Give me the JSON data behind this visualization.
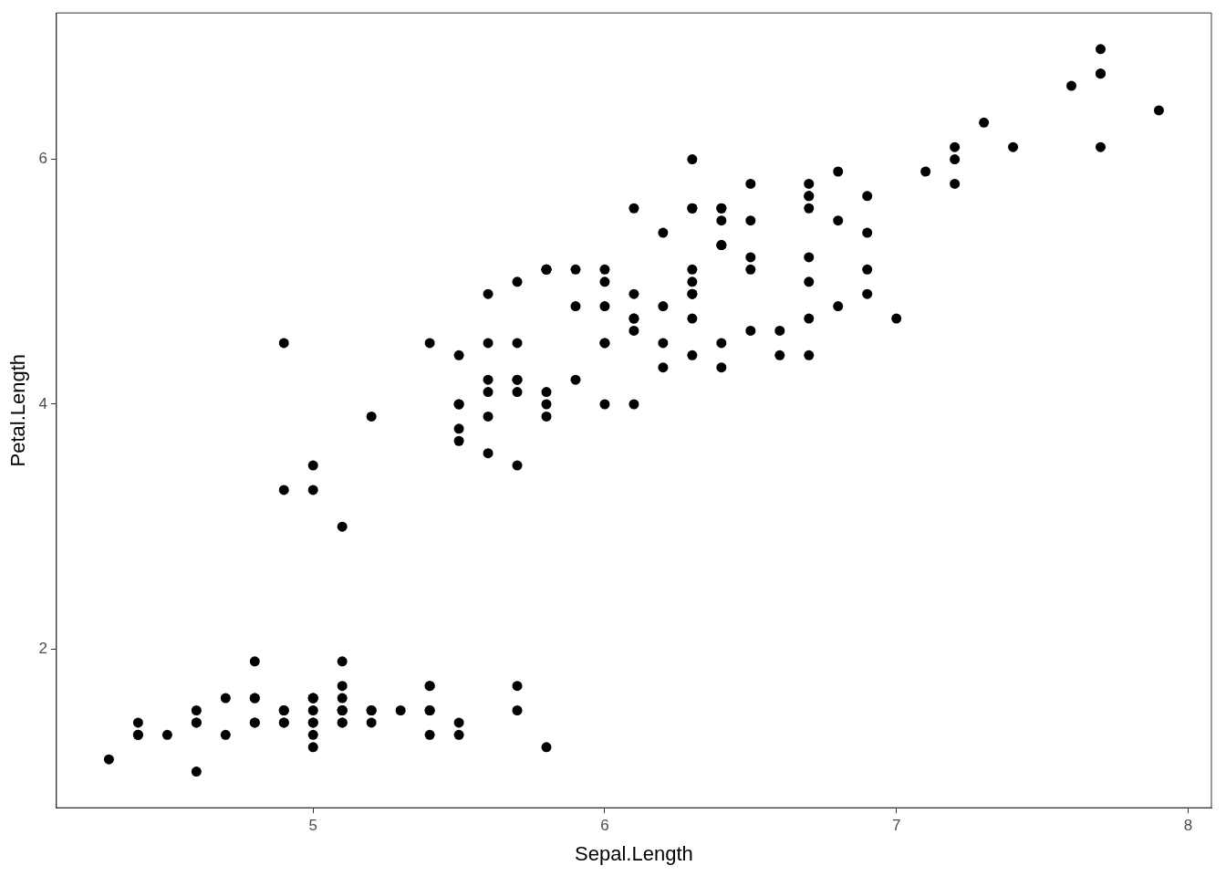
{
  "chart_data": {
    "type": "scatter",
    "xlabel": "Sepal.Length",
    "ylabel": "Petal.Length",
    "x": [
      5.1,
      4.9,
      4.7,
      4.6,
      5.0,
      5.4,
      4.6,
      5.0,
      4.4,
      4.9,
      5.4,
      4.8,
      4.8,
      4.3,
      5.8,
      5.7,
      5.4,
      5.1,
      5.7,
      5.1,
      5.4,
      5.1,
      4.6,
      5.1,
      4.8,
      5.0,
      5.0,
      5.2,
      5.2,
      4.7,
      4.8,
      5.4,
      5.2,
      5.5,
      4.9,
      5.0,
      5.5,
      4.9,
      4.4,
      5.1,
      5.0,
      4.5,
      4.4,
      5.0,
      5.1,
      4.8,
      5.1,
      4.6,
      5.3,
      5.0,
      7.0,
      6.4,
      6.9,
      5.5,
      6.5,
      5.7,
      6.3,
      4.9,
      6.6,
      5.2,
      5.0,
      5.9,
      6.0,
      6.1,
      5.6,
      6.7,
      5.6,
      5.8,
      6.2,
      5.6,
      5.9,
      6.1,
      6.3,
      6.1,
      6.4,
      6.6,
      6.8,
      6.7,
      6.0,
      5.7,
      5.5,
      5.5,
      5.8,
      6.0,
      5.4,
      6.0,
      6.7,
      6.3,
      5.6,
      5.5,
      5.5,
      6.1,
      5.8,
      5.0,
      5.6,
      5.7,
      5.7,
      6.2,
      5.1,
      5.7,
      6.3,
      5.8,
      7.1,
      6.3,
      6.5,
      7.6,
      4.9,
      7.3,
      6.7,
      7.2,
      6.5,
      6.4,
      6.8,
      5.7,
      5.8,
      6.4,
      6.5,
      7.7,
      7.7,
      6.0,
      6.9,
      5.6,
      7.7,
      6.3,
      6.7,
      7.2,
      6.2,
      6.1,
      6.4,
      7.2,
      7.4,
      7.9,
      6.4,
      6.3,
      6.1,
      7.7,
      6.3,
      6.4,
      6.0,
      6.9,
      6.7,
      6.9,
      5.8,
      6.8,
      6.7,
      6.7,
      6.3,
      6.5,
      6.2,
      5.9
    ],
    "values": [
      1.4,
      1.4,
      1.3,
      1.5,
      1.4,
      1.7,
      1.4,
      1.5,
      1.4,
      1.5,
      1.5,
      1.6,
      1.4,
      1.1,
      1.2,
      1.5,
      1.3,
      1.4,
      1.7,
      1.5,
      1.7,
      1.5,
      1.0,
      1.7,
      1.9,
      1.6,
      1.6,
      1.5,
      1.4,
      1.6,
      1.6,
      1.5,
      1.5,
      1.4,
      1.5,
      1.2,
      1.3,
      1.4,
      1.3,
      1.5,
      1.3,
      1.3,
      1.3,
      1.6,
      1.9,
      1.4,
      1.6,
      1.4,
      1.5,
      1.4,
      4.7,
      4.5,
      4.9,
      4.0,
      4.6,
      4.5,
      4.7,
      3.3,
      4.6,
      3.9,
      3.5,
      4.2,
      4.0,
      4.7,
      3.6,
      4.4,
      4.5,
      4.1,
      4.5,
      3.9,
      4.8,
      4.0,
      4.9,
      4.7,
      4.3,
      4.4,
      4.8,
      5.0,
      4.5,
      3.5,
      3.8,
      3.7,
      3.9,
      5.1,
      4.5,
      4.5,
      4.7,
      4.4,
      4.1,
      4.0,
      4.4,
      4.6,
      4.0,
      3.3,
      4.2,
      4.2,
      4.2,
      4.3,
      3.0,
      4.1,
      6.0,
      5.1,
      5.9,
      5.6,
      5.8,
      6.6,
      4.5,
      6.3,
      5.8,
      6.1,
      5.1,
      5.3,
      5.5,
      5.0,
      5.1,
      5.3,
      5.5,
      6.7,
      6.9,
      5.0,
      5.7,
      4.9,
      6.7,
      4.9,
      5.7,
      6.0,
      4.8,
      4.9,
      5.6,
      5.8,
      6.1,
      6.4,
      5.6,
      5.1,
      5.6,
      6.1,
      5.6,
      5.5,
      4.8,
      5.4,
      5.6,
      5.1,
      5.1,
      5.9,
      5.7,
      5.2,
      5.0,
      5.2,
      5.4,
      5.1
    ],
    "color": "#000000",
    "marker": "circle",
    "grid": false,
    "legend": false,
    "xlim": [
      4.12,
      8.08
    ],
    "xticks": [
      5,
      6,
      7,
      8
    ],
    "ylim": [
      0.705,
      7.195
    ],
    "yticks": [
      2,
      4,
      6
    ]
  }
}
